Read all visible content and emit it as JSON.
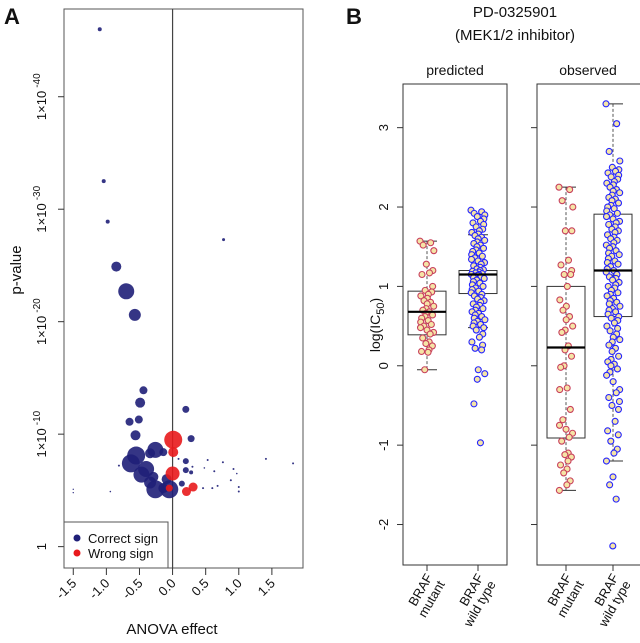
{
  "chart_data": [
    {
      "type": "scatter",
      "panel_label": "A",
      "xlabel": "ANOVA effect",
      "ylabel": "p-value",
      "y_scale": "-log10(p)",
      "xlim": [
        -1.64,
        1.97
      ],
      "ylim": [
        -1.9,
        47.8
      ],
      "x_ticks": [
        "-1.5",
        "-1.0",
        "-0.5",
        "0.0",
        "0.5",
        "1.0",
        "1.5"
      ],
      "x_tick_values": [
        -1.5,
        -1.0,
        -0.5,
        0.0,
        0.5,
        1.0,
        1.5
      ],
      "y_ticks": [
        {
          "value": 0,
          "label": "1",
          "exp": ""
        },
        {
          "value": 10,
          "label": "1×10",
          "exp": "-10"
        },
        {
          "value": 20,
          "label": "1×10",
          "exp": "-20"
        },
        {
          "value": 30,
          "label": "1×10",
          "exp": "-30"
        },
        {
          "value": 40,
          "label": "1×10",
          "exp": "-40"
        }
      ],
      "reference_line_x": 0,
      "grid": false,
      "legend": {
        "position": "bottom-left",
        "entries": [
          "Correct sign",
          "Wrong sign"
        ]
      },
      "series": [
        {
          "name": "Correct sign",
          "color": "#1f1f78",
          "points": [
            [
              -1.1,
              46.0,
              2
            ],
            [
              -1.04,
              32.5,
              2
            ],
            [
              -0.98,
              28.9,
              2
            ],
            [
              -0.85,
              24.9,
              5
            ],
            [
              -0.7,
              22.7,
              8
            ],
            [
              -0.57,
              20.6,
              6
            ],
            [
              0.77,
              27.3,
              1.5
            ],
            [
              -0.44,
              13.9,
              4
            ],
            [
              -0.49,
              12.8,
              5
            ],
            [
              -0.65,
              11.1,
              4
            ],
            [
              -0.51,
              11.3,
              4
            ],
            [
              -0.56,
              9.9,
              5
            ],
            [
              -0.55,
              8.1,
              9
            ],
            [
              -0.63,
              7.4,
              9
            ],
            [
              -0.26,
              8.6,
              8
            ],
            [
              -0.34,
              8.3,
              5
            ],
            [
              -0.14,
              8.4,
              4
            ],
            [
              -0.4,
              6.9,
              8
            ],
            [
              -0.47,
              6.4,
              8
            ],
            [
              -0.29,
              6.2,
              5
            ],
            [
              -0.26,
              5.1,
              9
            ],
            [
              -0.34,
              5.7,
              6
            ],
            [
              -0.05,
              5.1,
              9
            ],
            [
              -0.09,
              6.0,
              5
            ],
            [
              -0.14,
              5.2,
              5
            ],
            [
              0.14,
              5.6,
              3
            ],
            [
              -0.81,
              7.2,
              1
            ],
            [
              -1.5,
              5.1,
              0.7
            ],
            [
              -1.5,
              4.8,
              0.7
            ],
            [
              -0.94,
              4.9,
              0.8
            ],
            [
              0.2,
              12.2,
              3.5
            ],
            [
              0.28,
              9.6,
              3.5
            ],
            [
              0.2,
              7.6,
              3
            ],
            [
              0.2,
              6.8,
              3
            ],
            [
              0.28,
              6.6,
              2
            ],
            [
              0.3,
              7.1,
              1
            ],
            [
              0.53,
              7.7,
              1
            ],
            [
              0.48,
              7.0,
              0.8
            ],
            [
              0.63,
              6.7,
              1
            ],
            [
              0.76,
              7.5,
              1
            ],
            [
              0.92,
              6.9,
              1
            ],
            [
              0.97,
              6.5,
              0.8
            ],
            [
              0.88,
              5.9,
              1
            ],
            [
              0.68,
              5.4,
              1
            ],
            [
              0.6,
              5.2,
              1
            ],
            [
              0.46,
              5.2,
              1
            ],
            [
              1.0,
              5.3,
              1
            ],
            [
              1.0,
              4.9,
              1
            ],
            [
              1.41,
              7.8,
              1
            ],
            [
              1.82,
              7.4,
              1
            ],
            [
              0.09,
              7.8,
              1
            ]
          ]
        },
        {
          "name": "Wrong sign",
          "color": "#e8191c",
          "points": [
            [
              0.01,
              9.5,
              9
            ],
            [
              0.01,
              8.4,
              5
            ],
            [
              0.0,
              6.5,
              7
            ],
            [
              -0.05,
              5.2,
              3.5
            ],
            [
              0.21,
              4.9,
              4.5
            ],
            [
              0.31,
              5.3,
              4.5
            ]
          ]
        }
      ]
    },
    {
      "type": "box",
      "panel_label": "B",
      "title": [
        "PD-0325901",
        "(MEK1/2 inhibitor)"
      ],
      "ylabel": "log(IC",
      "ylabel_sub": "50",
      "ylabel_end": ")",
      "ylim": [
        -2.51,
        3.55
      ],
      "y_ticks": [
        "-2",
        "-1",
        "0",
        "1",
        "2",
        "3"
      ],
      "y_tick_values": [
        -2,
        -1,
        0,
        1,
        2,
        3
      ],
      "categories": [
        [
          "BRAF",
          "mutant"
        ],
        [
          "BRAF",
          "wild type"
        ]
      ],
      "point_fill": "#f5e4a6",
      "category_colors": [
        "#c8405c",
        "#2424ff"
      ],
      "panels": [
        {
          "name": "predicted",
          "boxes": [
            {
              "q1": 0.39,
              "median": 0.68,
              "q3": 0.94,
              "whisker_low": -0.05,
              "whisker_high": 1.57,
              "points": [
                1.57,
                1.55,
                1.52,
                1.45,
                1.28,
                1.2,
                1.17,
                1.15,
                1.0,
                0.95,
                0.93,
                0.9,
                0.88,
                0.85,
                0.82,
                0.8,
                0.78,
                0.75,
                0.72,
                0.7,
                0.68,
                0.66,
                0.64,
                0.62,
                0.6,
                0.57,
                0.55,
                0.52,
                0.5,
                0.48,
                0.45,
                0.42,
                0.4,
                0.35,
                0.3,
                0.28,
                0.25,
                0.2,
                0.18,
                0.17,
                -0.05
              ]
            },
            {
              "q1": 0.91,
              "median": 1.15,
              "q3": 1.2,
              "whisker_low": 0.48,
              "whisker_high": 1.65,
              "points": [
                1.96,
                1.94,
                1.92,
                1.9,
                1.88,
                1.85,
                1.82,
                1.8,
                1.78,
                1.75,
                1.72,
                1.7,
                1.68,
                1.66,
                1.64,
                1.62,
                1.6,
                1.58,
                1.56,
                1.54,
                1.52,
                1.5,
                1.48,
                1.46,
                1.44,
                1.42,
                1.4,
                1.38,
                1.36,
                1.34,
                1.32,
                1.3,
                1.28,
                1.26,
                1.24,
                1.22,
                1.21,
                1.2,
                1.19,
                1.18,
                1.17,
                1.16,
                1.15,
                1.15,
                1.14,
                1.13,
                1.12,
                1.11,
                1.1,
                1.08,
                1.06,
                1.04,
                1.02,
                1.0,
                0.98,
                0.96,
                0.94,
                0.92,
                0.9,
                0.88,
                0.86,
                0.84,
                0.82,
                0.8,
                0.78,
                0.76,
                0.74,
                0.72,
                0.7,
                0.68,
                0.66,
                0.64,
                0.62,
                0.6,
                0.58,
                0.56,
                0.54,
                0.52,
                0.5,
                0.48,
                0.45,
                0.4,
                0.36,
                0.3,
                0.26,
                0.22,
                0.2,
                -0.05,
                -0.1,
                -0.17,
                -0.48,
                -0.97
              ]
            }
          ]
        },
        {
          "name": "observed",
          "boxes": [
            {
              "q1": -0.91,
              "median": 0.23,
              "q3": 1.0,
              "whisker_low": -1.57,
              "whisker_high": 2.25,
              "points": [
                2.25,
                2.22,
                2.08,
                2.0,
                1.7,
                1.7,
                1.33,
                1.27,
                1.2,
                1.15,
                1.15,
                1.0,
                0.83,
                0.75,
                0.7,
                0.62,
                0.58,
                0.5,
                0.45,
                0.42,
                0.25,
                0.2,
                0.12,
                0.0,
                -0.02,
                -0.28,
                -0.3,
                -0.55,
                -0.68,
                -0.75,
                -0.8,
                -0.85,
                -0.9,
                -0.95,
                -1.1,
                -1.12,
                -1.15,
                -1.2,
                -1.25,
                -1.3,
                -1.35,
                -1.45,
                -1.5,
                -1.57
              ]
            },
            {
              "q1": 0.62,
              "median": 1.2,
              "q3": 1.91,
              "whisker_low": -1.2,
              "whisker_high": 3.3,
              "points": [
                3.3,
                3.05,
                2.7,
                2.58,
                2.5,
                2.47,
                2.45,
                2.43,
                2.4,
                2.38,
                2.35,
                2.32,
                2.3,
                2.28,
                2.25,
                2.22,
                2.2,
                2.18,
                2.15,
                2.12,
                2.1,
                2.08,
                2.05,
                2.02,
                2.0,
                1.98,
                1.95,
                1.92,
                1.9,
                1.88,
                1.85,
                1.82,
                1.8,
                1.78,
                1.75,
                1.72,
                1.7,
                1.68,
                1.65,
                1.62,
                1.6,
                1.58,
                1.55,
                1.52,
                1.5,
                1.48,
                1.45,
                1.42,
                1.4,
                1.38,
                1.35,
                1.32,
                1.3,
                1.28,
                1.25,
                1.22,
                1.2,
                1.18,
                1.15,
                1.12,
                1.1,
                1.08,
                1.05,
                1.02,
                1.0,
                0.98,
                0.95,
                0.92,
                0.9,
                0.88,
                0.85,
                0.82,
                0.8,
                0.78,
                0.75,
                0.72,
                0.7,
                0.68,
                0.65,
                0.62,
                0.6,
                0.57,
                0.54,
                0.5,
                0.47,
                0.44,
                0.4,
                0.36,
                0.33,
                0.3,
                0.26,
                0.22,
                0.18,
                0.12,
                0.08,
                0.05,
                0.02,
                0.0,
                -0.04,
                -0.08,
                -0.12,
                -0.2,
                -0.3,
                -0.34,
                -0.4,
                -0.45,
                -0.5,
                -0.55,
                -0.7,
                -0.82,
                -0.87,
                -0.95,
                -1.05,
                -1.1,
                -1.2,
                -1.4,
                -1.5,
                -1.68,
                -2.27
              ]
            }
          ]
        }
      ]
    }
  ]
}
